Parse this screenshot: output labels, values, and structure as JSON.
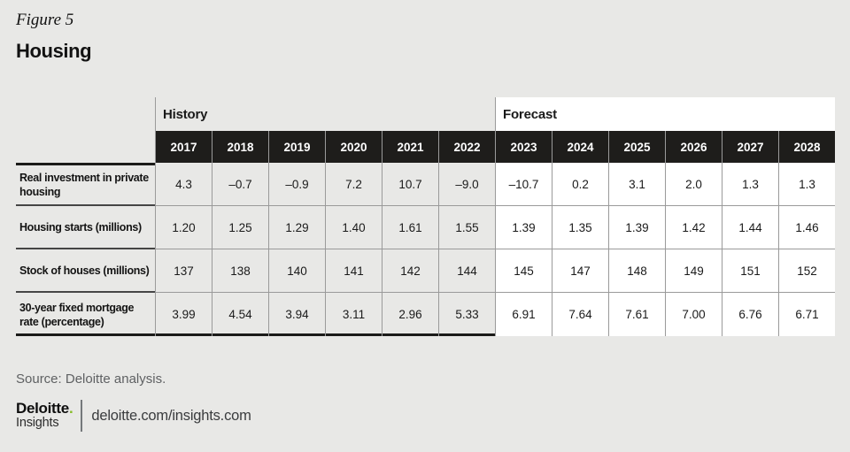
{
  "figure": {
    "label": "Figure 5",
    "title": "Housing"
  },
  "table": {
    "group_headers": [
      {
        "label": "History"
      },
      {
        "label": "Forecast"
      }
    ],
    "years": [
      "2017",
      "2018",
      "2019",
      "2020",
      "2021",
      "2022",
      "2023",
      "2024",
      "2025",
      "2026",
      "2027",
      "2028"
    ],
    "rows": [
      {
        "label": "Real investment in private housing",
        "values": [
          "4.3",
          "–0.7",
          "–0.9",
          "7.2",
          "10.7",
          "–9.0",
          "–10.7",
          "0.2",
          "3.1",
          "2.0",
          "1.3",
          "1.3"
        ]
      },
      {
        "label": "Housing starts (millions)",
        "values": [
          "1.20",
          "1.25",
          "1.29",
          "1.40",
          "1.61",
          "1.55",
          "1.39",
          "1.35",
          "1.39",
          "1.42",
          "1.44",
          "1.46"
        ]
      },
      {
        "label": "Stock of houses (millions)",
        "values": [
          "137",
          "138",
          "140",
          "141",
          "142",
          "144",
          "145",
          "147",
          "148",
          "149",
          "151",
          "152"
        ]
      },
      {
        "label": "30-year fixed mortgage rate (percentage)",
        "values": [
          "3.99",
          "4.54",
          "3.94",
          "3.11",
          "2.96",
          "5.33",
          "6.91",
          "7.64",
          "7.61",
          "7.00",
          "6.76",
          "6.71"
        ]
      }
    ]
  },
  "footer": {
    "source": "Source: Deloitte analysis.",
    "brand": {
      "name": "Deloitte",
      "dot": ".",
      "tagline": "Insights",
      "url": "deloitte.com/insights.com"
    }
  },
  "colors": {
    "page_bg": "#e8e8e6",
    "header_bg": "#1e1d1b",
    "header_text": "#ffffff",
    "forecast_bg": "#ffffff",
    "grid_line": "#9a9a9a",
    "heavy_rule": "#1b1b19",
    "source_text": "#5f6163",
    "brand_green": "#86bc25"
  },
  "chart_data": {
    "type": "table",
    "title": "Figure 5 — Housing",
    "column_groups": [
      {
        "label": "History",
        "columns": [
          "2017",
          "2018",
          "2019",
          "2020",
          "2021",
          "2022"
        ]
      },
      {
        "label": "Forecast",
        "columns": [
          "2023",
          "2024",
          "2025",
          "2026",
          "2027",
          "2028"
        ]
      }
    ],
    "columns": [
      "2017",
      "2018",
      "2019",
      "2020",
      "2021",
      "2022",
      "2023",
      "2024",
      "2025",
      "2026",
      "2027",
      "2028"
    ],
    "rows": [
      {
        "label": "Real investment in private housing",
        "values": [
          4.3,
          -0.7,
          -0.9,
          7.2,
          10.7,
          -9.0,
          -10.7,
          0.2,
          3.1,
          2.0,
          1.3,
          1.3
        ]
      },
      {
        "label": "Housing starts (millions)",
        "values": [
          1.2,
          1.25,
          1.29,
          1.4,
          1.61,
          1.55,
          1.39,
          1.35,
          1.39,
          1.42,
          1.44,
          1.46
        ]
      },
      {
        "label": "Stock of houses (millions)",
        "values": [
          137,
          138,
          140,
          141,
          142,
          144,
          145,
          147,
          148,
          149,
          151,
          152
        ]
      },
      {
        "label": "30-year fixed mortgage rate (percentage)",
        "values": [
          3.99,
          4.54,
          3.94,
          3.11,
          2.96,
          5.33,
          6.91,
          7.64,
          7.61,
          7.0,
          6.76,
          6.71
        ]
      }
    ],
    "source": "Source: Deloitte analysis."
  }
}
